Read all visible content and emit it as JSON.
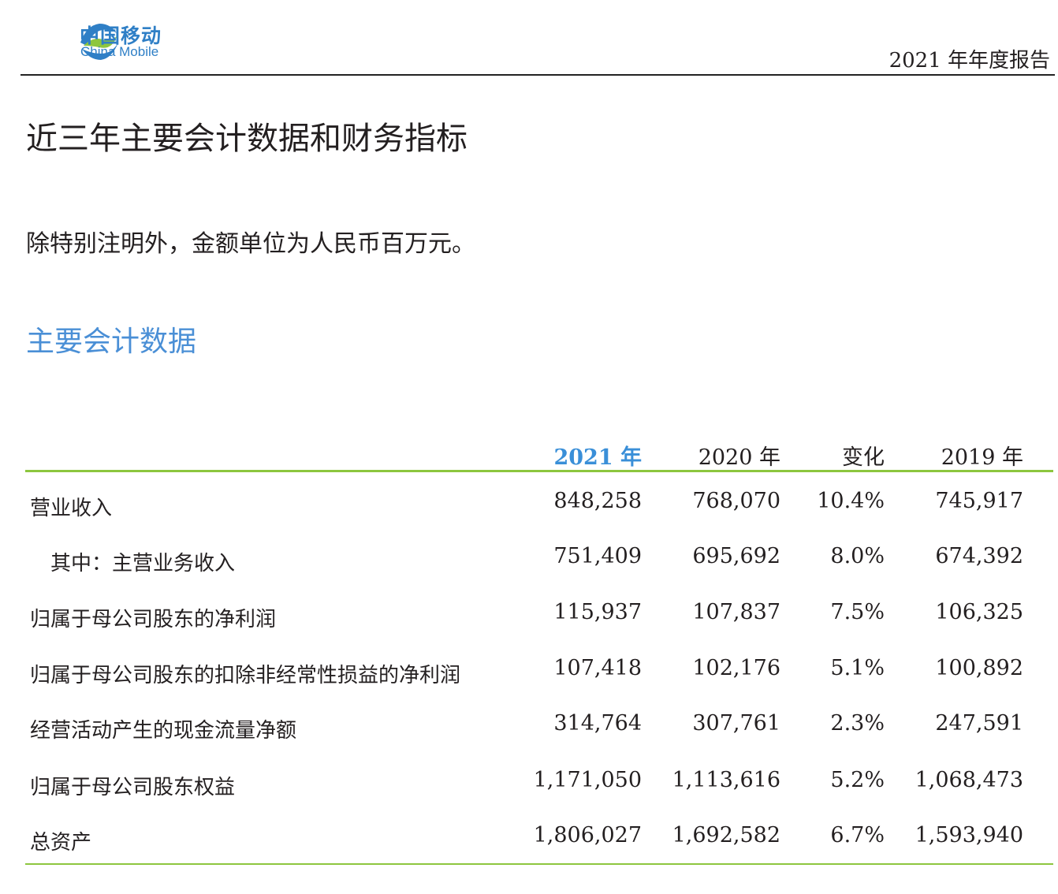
{
  "header": {
    "logo_cn": "中国移动",
    "logo_en": "China Mobile",
    "report_title": "2021 年年度报告",
    "colors": {
      "brand_blue": "#2f7fc6",
      "brand_green": "#8dc63f"
    }
  },
  "page_title": "近三年主要会计数据和财务指标",
  "unit_note": "除特别注明外，金额单位为人民币百万元。",
  "section_title": "主要会计数据",
  "table": {
    "columns": [
      "2021 年",
      "2020 年",
      "变化",
      "2019 年"
    ],
    "rows": [
      {
        "label": "营业收入",
        "values": [
          "848,258",
          "768,070",
          "10.4%",
          "745,917"
        ]
      },
      {
        "label": "其中：主营业务收入",
        "values": [
          "751,409",
          "695,692",
          "8.0%",
          "674,392"
        ]
      },
      {
        "label": "归属于母公司股东的净利润",
        "values": [
          "115,937",
          "107,837",
          "7.5%",
          "106,325"
        ]
      },
      {
        "label": "归属于母公司股东的扣除非经常性损益的净利润",
        "values": [
          "107,418",
          "102,176",
          "5.1%",
          "100,892"
        ]
      },
      {
        "label": "经营活动产生的现金流量净额",
        "values": [
          "314,764",
          "307,761",
          "2.3%",
          "247,591"
        ]
      },
      {
        "label": "归属于母公司股东权益",
        "values": [
          "1,171,050",
          "1,113,616",
          "5.2%",
          "1,068,473"
        ]
      },
      {
        "label": "总资产",
        "values": [
          "1,806,027",
          "1,692,582",
          "6.7%",
          "1,593,940"
        ]
      }
    ]
  }
}
